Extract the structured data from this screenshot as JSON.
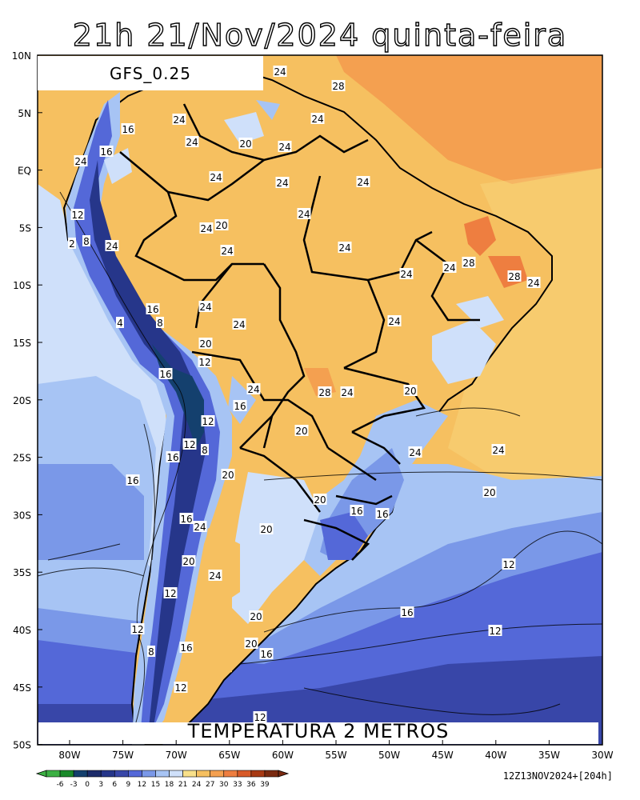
{
  "title": "21h 21/Nov/2024 quinta-feira",
  "model_label": "GFS_0.25",
  "variable_label": "TEMPERATURA 2 METROS",
  "run_info": "12Z13NOV2024+[204h]",
  "lat_labels": [
    "10N",
    "5N",
    "EQ",
    "5S",
    "10S",
    "15S",
    "20S",
    "25S",
    "30S",
    "35S",
    "40S",
    "45S",
    "50S"
  ],
  "lon_labels": [
    "80W",
    "75W",
    "70W",
    "65W",
    "60W",
    "55W",
    "50W",
    "45W",
    "40W",
    "35W",
    "30W"
  ],
  "colorbar": {
    "ticks": [
      "-6",
      "-3",
      "0",
      "3",
      "6",
      "9",
      "12",
      "15",
      "18",
      "21",
      "24",
      "27",
      "30",
      "33",
      "36",
      "39"
    ],
    "colors": [
      "#3cb043",
      "#1a8a2a",
      "#14406e",
      "#1c2c6a",
      "#26368a",
      "#3846a8",
      "#5468d8",
      "#7a98e8",
      "#a7c4f4",
      "#cfe0fa",
      "#f8e08a",
      "#f6c060",
      "#f4a050",
      "#ee7e40",
      "#d85a28",
      "#a83a14",
      "#7a2a10"
    ]
  },
  "contour_labels": [
    "24",
    "28",
    "24",
    "16",
    "24",
    "16",
    "24",
    "20",
    "24",
    "24",
    "24",
    "24",
    "24",
    "12",
    "24",
    "24",
    "20",
    "2",
    "8",
    "24",
    "24",
    "24",
    "24",
    "28",
    "24",
    "16",
    "28",
    "24",
    "4",
    "8",
    "24",
    "24",
    "20",
    "12",
    "16",
    "24",
    "28",
    "24",
    "20",
    "16",
    "12",
    "8",
    "12",
    "24",
    "16",
    "20",
    "20",
    "24",
    "16",
    "16",
    "20",
    "16",
    "24",
    "20",
    "24",
    "20",
    "12",
    "24",
    "16",
    "20",
    "12",
    "20",
    "20",
    "16",
    "16",
    "12",
    "12",
    "8",
    "16",
    "12",
    "12"
  ],
  "colors": {
    "ocean_warm": "#f6c060",
    "ocean_hot": "#f4a050",
    "land_warm": "#f6c060",
    "cool": "#a7c4f4",
    "cold": "#5468d8"
  }
}
